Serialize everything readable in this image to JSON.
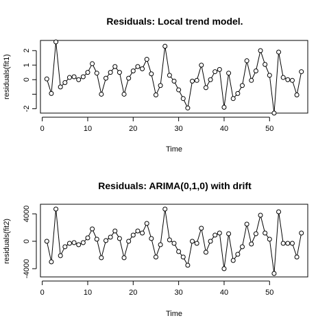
{
  "chart_data": [
    {
      "type": "line",
      "title": "Residuals: Local trend model.",
      "xlabel": "Time",
      "ylabel": "residuals(fit1)",
      "xlim": [
        -0.4,
        58.4
      ],
      "ylim": [
        -2.3,
        2.7
      ],
      "xticks": [
        0,
        10,
        20,
        30,
        40,
        50
      ],
      "yticks": [
        -2,
        -1,
        0,
        1,
        2
      ],
      "ytick_labels": [
        "-2",
        "",
        "0",
        "1",
        "2"
      ],
      "series": [
        {
          "x": [
            1,
            2,
            3,
            4,
            5,
            6,
            7,
            8,
            9,
            10,
            11,
            12,
            13,
            14,
            15,
            16,
            17,
            18,
            19,
            20,
            21,
            22,
            23,
            24,
            25,
            26,
            27,
            28,
            29,
            30,
            31,
            32,
            33,
            34,
            35,
            36,
            37,
            38,
            39,
            40,
            41,
            42,
            43,
            44,
            45,
            46,
            47,
            48,
            49,
            50,
            51,
            52,
            53,
            54,
            55,
            56,
            57
          ],
          "values": [
            0.05,
            -0.95,
            2.6,
            -0.5,
            -0.2,
            0.15,
            0.2,
            0.0,
            0.2,
            0.5,
            1.1,
            0.45,
            -1.0,
            0.1,
            0.5,
            0.9,
            0.5,
            -1.0,
            0.1,
            0.6,
            0.9,
            0.75,
            1.4,
            0.4,
            -1.05,
            -0.4,
            2.3,
            0.3,
            -0.1,
            -0.7,
            -1.3,
            -1.95,
            -0.1,
            -0.05,
            1.0,
            -0.55,
            0.0,
            0.55,
            0.7,
            -1.9,
            0.45,
            -1.3,
            -0.95,
            -0.4,
            1.3,
            -0.05,
            0.6,
            2.0,
            1.05,
            0.3,
            -2.3,
            1.9,
            0.15,
            0.0,
            -0.05,
            -1.05,
            0.55
          ]
        }
      ]
    },
    {
      "type": "line",
      "title": "Residuals: ARIMA(0,1,0) with drift",
      "xlabel": "Time",
      "ylabel": "residuals(fit2)",
      "xlim": [
        -0.4,
        58.4
      ],
      "ylim": [
        -5200,
        5400
      ],
      "xticks": [
        0,
        10,
        20,
        30,
        40,
        50
      ],
      "yticks": [
        -4000,
        0,
        4000
      ],
      "ytick_labels": [
        "-4000",
        "0",
        "4000"
      ],
      "series": [
        {
          "x": [
            1,
            2,
            3,
            4,
            5,
            6,
            7,
            8,
            9,
            10,
            11,
            12,
            13,
            14,
            15,
            16,
            17,
            18,
            19,
            20,
            21,
            22,
            23,
            24,
            25,
            26,
            27,
            28,
            29,
            30,
            31,
            32,
            33,
            34,
            35,
            36,
            37,
            38,
            39,
            40,
            41,
            42,
            43,
            44,
            45,
            46,
            47,
            48,
            49,
            50,
            51,
            52,
            53,
            54,
            55,
            56,
            57
          ],
          "values": [
            0,
            -3000,
            4700,
            -2100,
            -800,
            -300,
            -200,
            -500,
            -200,
            500,
            1800,
            300,
            -2400,
            100,
            600,
            1500,
            400,
            -2400,
            0,
            900,
            1500,
            1200,
            2600,
            400,
            -2300,
            -500,
            4700,
            200,
            -300,
            -1500,
            -2300,
            -3500,
            0,
            -300,
            1900,
            -1600,
            0,
            900,
            1200,
            -4000,
            1100,
            -2800,
            -1900,
            -800,
            2500,
            -400,
            1100,
            3800,
            1200,
            300,
            -4700,
            4300,
            -300,
            -300,
            -300,
            -2300,
            1200
          ]
        }
      ]
    }
  ]
}
